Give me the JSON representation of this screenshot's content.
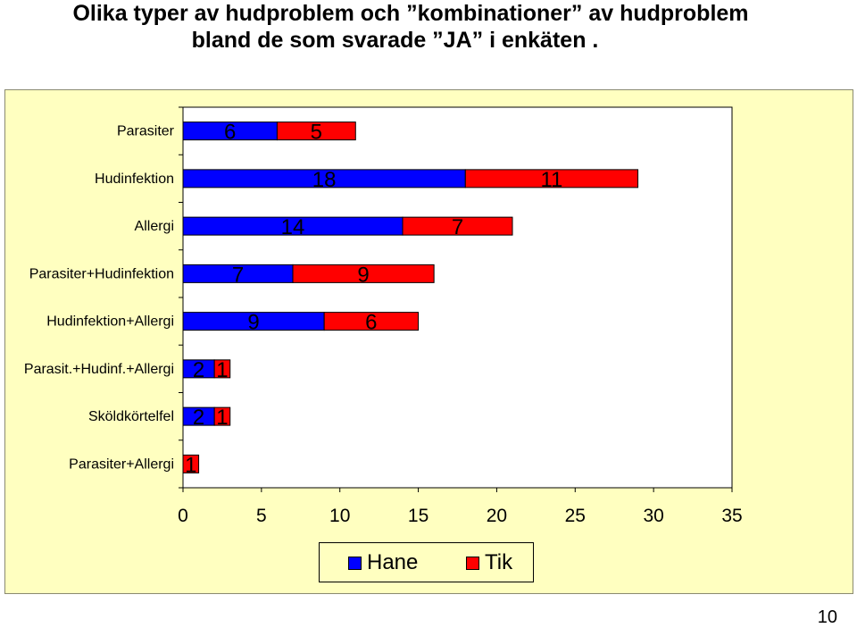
{
  "title": {
    "line1": "Olika typer  av hudproblem och ”kombinationer” av hudproblem",
    "line2": "bland  de som svarade ”JA” i enkäten ."
  },
  "page_number": "10",
  "colors": {
    "hane": "#0000ff",
    "tik": "#ff0000",
    "plot_bg": "#ffffff",
    "panel_bg": "#ffffc0"
  },
  "chart_data": {
    "type": "bar",
    "orientation": "horizontal",
    "stacked": true,
    "categories": [
      "Parasiter",
      "Hudinfektion",
      "Allergi",
      "Parasiter+Hudinfektion",
      "Hudinfektion+Allergi",
      "Parasit.+Hudinf.+Allergi",
      "Sköldkörtelfel",
      "Parasiter+Allergi"
    ],
    "series": [
      {
        "name": "Hane",
        "values": [
          6,
          18,
          14,
          7,
          9,
          2,
          2,
          0
        ]
      },
      {
        "name": "Tik",
        "values": [
          5,
          11,
          7,
          9,
          6,
          1,
          1,
          1
        ]
      }
    ],
    "xlim": [
      0,
      35
    ],
    "xticks": [
      "0",
      "5",
      "10",
      "15",
      "20",
      "25",
      "30",
      "35"
    ],
    "grid": false,
    "legend_position": "bottom"
  },
  "legend": {
    "hane": "Hane",
    "tik": "Tik"
  }
}
